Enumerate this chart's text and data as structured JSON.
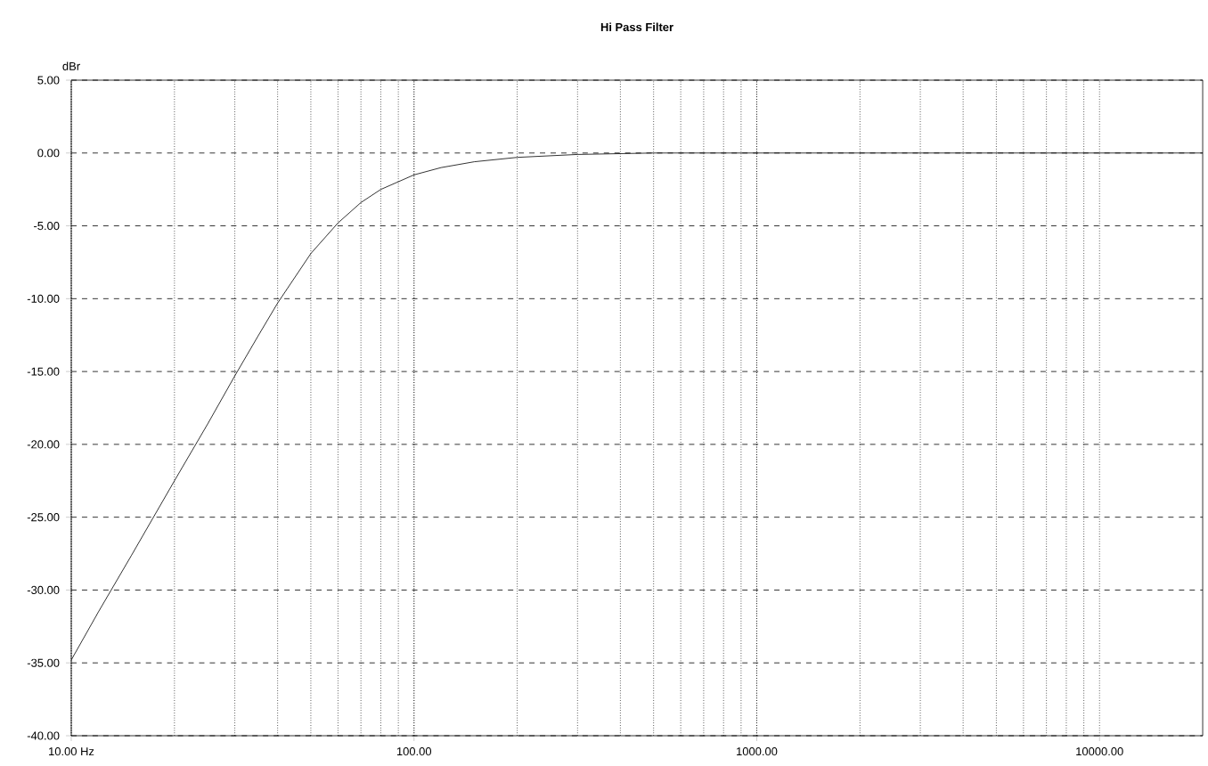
{
  "chart_data": {
    "type": "line",
    "title": "Hi Pass Filter",
    "ylabel": "dBr",
    "log": "x",
    "grid": true,
    "marker": "none",
    "line_style": "solid",
    "xlim": [
      10,
      20000
    ],
    "ylim": [
      -40,
      5
    ],
    "xticks": [
      {
        "value": 10,
        "label": "10.00 Hz"
      },
      {
        "value": 100,
        "label": "100.00"
      },
      {
        "value": 1000,
        "label": "1000.00"
      },
      {
        "value": 10000,
        "label": "10000.00"
      }
    ],
    "yticks": [
      {
        "value": 5,
        "label": "5.00"
      },
      {
        "value": 0,
        "label": "0.00"
      },
      {
        "value": -5,
        "label": "-5.00"
      },
      {
        "value": -10,
        "label": "-10.00"
      },
      {
        "value": -15,
        "label": "-15.00"
      },
      {
        "value": -20,
        "label": "-20.00"
      },
      {
        "value": -25,
        "label": "-25.00"
      },
      {
        "value": -30,
        "label": "-30.00"
      },
      {
        "value": -35,
        "label": "-35.00"
      },
      {
        "value": -40,
        "label": "-40.00"
      }
    ],
    "x": [
      10,
      12,
      15,
      20,
      25,
      30,
      35,
      40,
      50,
      60,
      70,
      80,
      100,
      120,
      150,
      200,
      300,
      500,
      1000,
      2000,
      5000,
      10000,
      20000
    ],
    "series": [
      {
        "color": "#000000",
        "values": [
          -34.8,
          -31.5,
          -27.6,
          -22.5,
          -18.6,
          -15.3,
          -12.6,
          -10.3,
          -6.9,
          -4.8,
          -3.4,
          -2.5,
          -1.5,
          -1.0,
          -0.6,
          -0.3,
          -0.1,
          0,
          0,
          0,
          0,
          0,
          0
        ]
      }
    ]
  }
}
